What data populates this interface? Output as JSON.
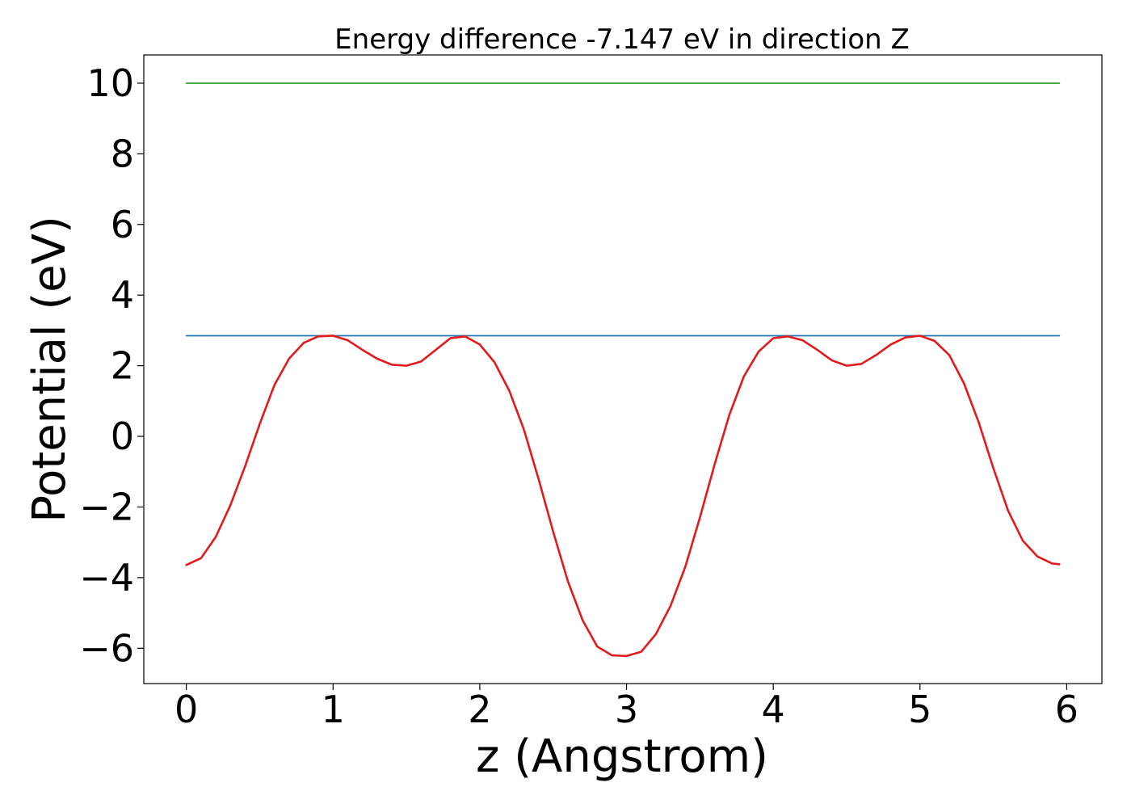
{
  "chart_data": {
    "type": "line",
    "title": "Energy difference -7.147 eV in direction Z",
    "xlabel": "z (Angstrom)",
    "ylabel": "Potential (eV)",
    "xlim": [
      -0.29,
      6.24
    ],
    "ylim": [
      -7.0,
      10.8
    ],
    "xticks": [
      0,
      1,
      2,
      3,
      4,
      5,
      6
    ],
    "yticks": [
      -6,
      -4,
      -2,
      0,
      2,
      4,
      6,
      8,
      10
    ],
    "ytick_labels": [
      "−6",
      "−4",
      "−2",
      "0",
      "2",
      "4",
      "6",
      "8",
      "10"
    ],
    "grid": false,
    "series": [
      {
        "color": "#2ca02c",
        "x": [
          0,
          5.95
        ],
        "y": [
          10.0,
          10.0
        ]
      },
      {
        "color": "#1f77b4",
        "x": [
          0,
          5.95
        ],
        "y": [
          2.85,
          2.85
        ]
      },
      {
        "color": "#e31a1c",
        "x": [
          0.0,
          0.1,
          0.2,
          0.3,
          0.4,
          0.5,
          0.6,
          0.7,
          0.8,
          0.9,
          1.0,
          1.1,
          1.2,
          1.3,
          1.4,
          1.5,
          1.6,
          1.7,
          1.8,
          1.9,
          2.0,
          2.1,
          2.2,
          2.3,
          2.4,
          2.5,
          2.6,
          2.7,
          2.8,
          2.9,
          3.0,
          3.1,
          3.2,
          3.3,
          3.4,
          3.5,
          3.6,
          3.7,
          3.8,
          3.9,
          4.0,
          4.1,
          4.2,
          4.3,
          4.4,
          4.5,
          4.6,
          4.7,
          4.8,
          4.9,
          5.0,
          5.1,
          5.2,
          5.3,
          5.4,
          5.5,
          5.6,
          5.7,
          5.8,
          5.9,
          5.95
        ],
        "y": [
          -3.64,
          -3.45,
          -2.85,
          -1.95,
          -0.85,
          0.35,
          1.45,
          2.2,
          2.65,
          2.83,
          2.85,
          2.72,
          2.45,
          2.2,
          2.03,
          2.0,
          2.12,
          2.45,
          2.78,
          2.83,
          2.6,
          2.1,
          1.3,
          0.2,
          -1.2,
          -2.7,
          -4.1,
          -5.2,
          -5.95,
          -6.2,
          -6.22,
          -6.1,
          -5.6,
          -4.8,
          -3.7,
          -2.3,
          -0.8,
          0.6,
          1.7,
          2.4,
          2.78,
          2.83,
          2.72,
          2.45,
          2.15,
          2.0,
          2.05,
          2.3,
          2.6,
          2.8,
          2.85,
          2.7,
          2.3,
          1.5,
          0.4,
          -0.9,
          -2.1,
          -2.95,
          -3.4,
          -3.6,
          -3.62
        ]
      }
    ]
  }
}
